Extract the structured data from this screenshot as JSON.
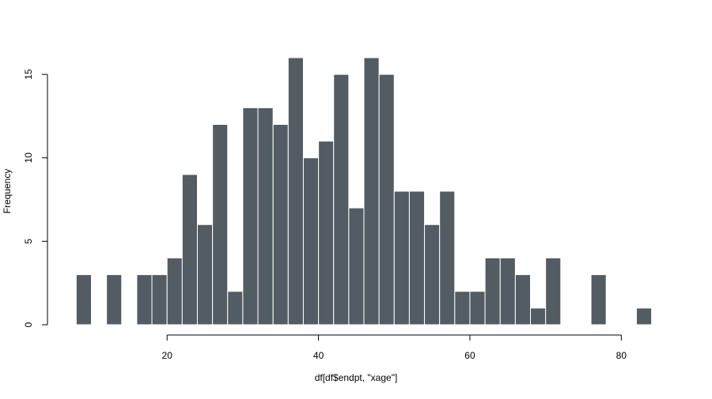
{
  "chart_data": {
    "type": "bar",
    "title": "",
    "xlabel": "df[df$endpt, \"xage\"]",
    "ylabel": "Frequency",
    "bin_width": 2,
    "bins": [
      {
        "x0": 8,
        "x1": 10,
        "count": 3
      },
      {
        "x0": 10,
        "x1": 12,
        "count": 0
      },
      {
        "x0": 12,
        "x1": 14,
        "count": 3
      },
      {
        "x0": 14,
        "x1": 16,
        "count": 0
      },
      {
        "x0": 16,
        "x1": 18,
        "count": 3
      },
      {
        "x0": 18,
        "x1": 20,
        "count": 3
      },
      {
        "x0": 20,
        "x1": 22,
        "count": 4
      },
      {
        "x0": 22,
        "x1": 24,
        "count": 9
      },
      {
        "x0": 24,
        "x1": 26,
        "count": 6
      },
      {
        "x0": 26,
        "x1": 28,
        "count": 12
      },
      {
        "x0": 28,
        "x1": 30,
        "count": 2
      },
      {
        "x0": 30,
        "x1": 32,
        "count": 13
      },
      {
        "x0": 32,
        "x1": 34,
        "count": 13
      },
      {
        "x0": 34,
        "x1": 36,
        "count": 12
      },
      {
        "x0": 36,
        "x1": 38,
        "count": 16
      },
      {
        "x0": 38,
        "x1": 40,
        "count": 10
      },
      {
        "x0": 40,
        "x1": 42,
        "count": 11
      },
      {
        "x0": 42,
        "x1": 44,
        "count": 15
      },
      {
        "x0": 44,
        "x1": 46,
        "count": 7
      },
      {
        "x0": 46,
        "x1": 48,
        "count": 16
      },
      {
        "x0": 48,
        "x1": 50,
        "count": 15
      },
      {
        "x0": 50,
        "x1": 52,
        "count": 8
      },
      {
        "x0": 52,
        "x1": 54,
        "count": 8
      },
      {
        "x0": 54,
        "x1": 56,
        "count": 6
      },
      {
        "x0": 56,
        "x1": 58,
        "count": 8
      },
      {
        "x0": 58,
        "x1": 60,
        "count": 2
      },
      {
        "x0": 60,
        "x1": 62,
        "count": 2
      },
      {
        "x0": 62,
        "x1": 64,
        "count": 4
      },
      {
        "x0": 64,
        "x1": 66,
        "count": 4
      },
      {
        "x0": 66,
        "x1": 68,
        "count": 3
      },
      {
        "x0": 68,
        "x1": 70,
        "count": 1
      },
      {
        "x0": 70,
        "x1": 72,
        "count": 4
      },
      {
        "x0": 72,
        "x1": 74,
        "count": 0
      },
      {
        "x0": 74,
        "x1": 76,
        "count": 0
      },
      {
        "x0": 76,
        "x1": 78,
        "count": 3
      },
      {
        "x0": 78,
        "x1": 80,
        "count": 0
      },
      {
        "x0": 80,
        "x1": 82,
        "count": 0
      },
      {
        "x0": 82,
        "x1": 84,
        "count": 1
      }
    ],
    "xticks": [
      20,
      40,
      60,
      80
    ],
    "yticks": [
      0,
      5,
      10,
      15
    ],
    "xlim": [
      4.2,
      87.8
    ],
    "ylim": [
      0,
      16
    ],
    "grid": false,
    "legend": "none",
    "bar_color": "#535C63",
    "bar_border_color": "#FFFFFF"
  }
}
